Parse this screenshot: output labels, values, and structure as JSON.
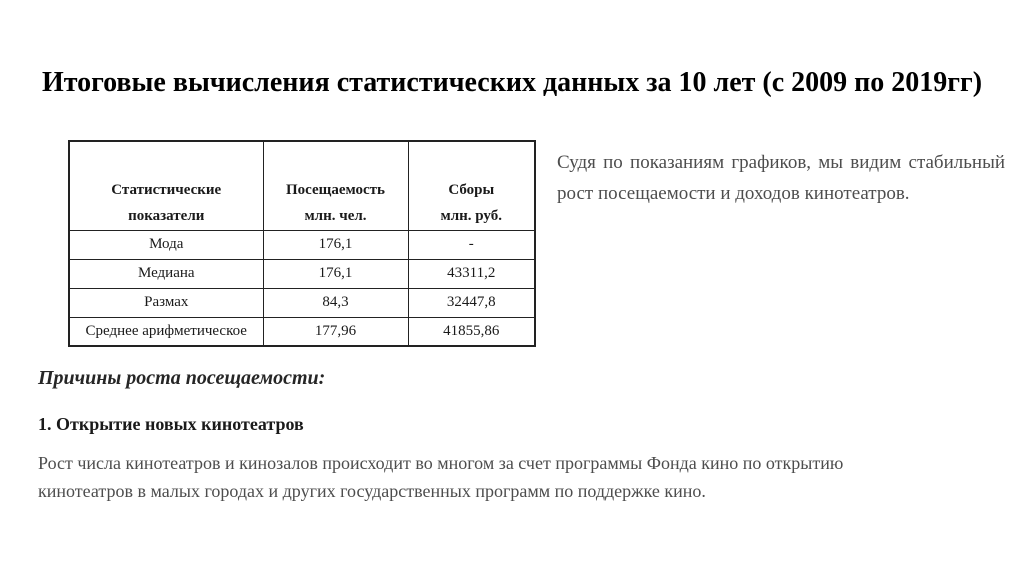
{
  "slide": {
    "title": "Итоговые вычисления статистических данных за 10 лет (с 2009 по 2019гг)",
    "side_note": "Судя по показаниям графиков, мы видим стабильный рост посещаемости и доходов кинотеатров.",
    "reasons_heading": "Причины роста посещаемости:",
    "reason_1_heading": "1. Открытие новых кинотеатров",
    "reason_1_text": "Рост числа кинотеатров и кинозалов происходит во многом за счет программы Фонда кино по открытию кинотеатров в малых городах и других государственных программ по поддержке кино."
  },
  "table": {
    "header": {
      "col1_line1": "Статистические",
      "col1_line2": "показатели",
      "col2_line1": "Посещаемость",
      "col2_line2": "млн. чел.",
      "col3_line1": "Сборы",
      "col3_line2": "млн. руб."
    },
    "rows": [
      {
        "indicator": "Мода",
        "attendance": "176,1",
        "revenue": "-"
      },
      {
        "indicator": "Медиана",
        "attendance": "176,1",
        "revenue": "43311,2"
      },
      {
        "indicator": "Размах",
        "attendance": "84,3",
        "revenue": "32447,8"
      },
      {
        "indicator": "Среднее арифметическое",
        "attendance": "177,96",
        "revenue": "41855,86"
      }
    ]
  },
  "colors": {
    "background": "#ffffff",
    "title_text": "#000000",
    "table_text": "#1a1a1a",
    "table_border": "#222222",
    "body_text": "#4d4d4d",
    "heading_text": "#262626"
  }
}
